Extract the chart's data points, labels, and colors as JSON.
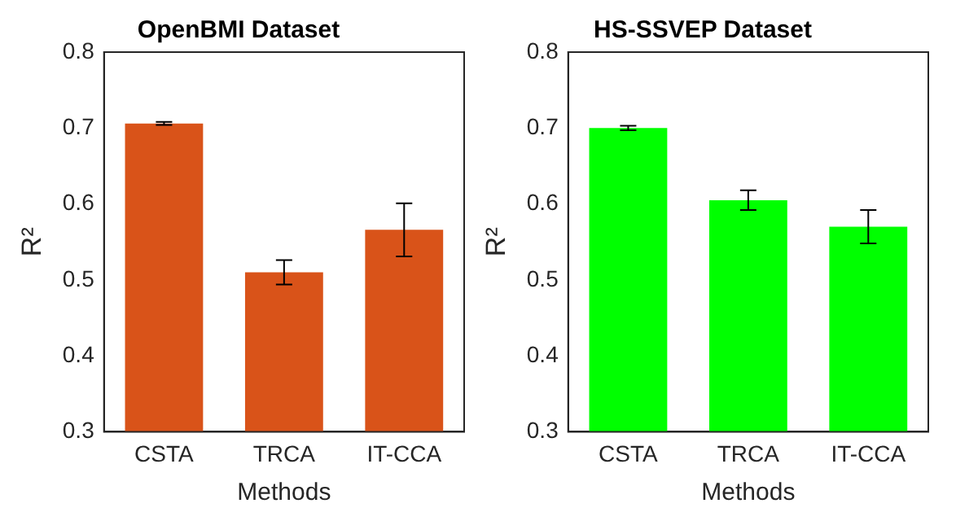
{
  "chart_data": [
    {
      "type": "bar",
      "title": "OpenBMI Dataset",
      "xlabel": "Methods",
      "ylabel": "R²",
      "categories": [
        "CSTA",
        "TRCA",
        "IT-CCA"
      ],
      "values": [
        0.706,
        0.51,
        0.566
      ],
      "errors": [
        0.002,
        0.016,
        0.035
      ],
      "color": "#d95319",
      "ylim": [
        0.3,
        0.8
      ],
      "yticks": [
        0.3,
        0.4,
        0.5,
        0.6,
        0.7,
        0.8
      ],
      "grid": false
    },
    {
      "type": "bar",
      "title": "HS-SSVEP Dataset",
      "xlabel": "Methods",
      "ylabel": "R²",
      "categories": [
        "CSTA",
        "TRCA",
        "IT-CCA"
      ],
      "values": [
        0.7,
        0.605,
        0.57
      ],
      "errors": [
        0.003,
        0.013,
        0.022
      ],
      "color": "#00ff00",
      "ylim": [
        0.3,
        0.8
      ],
      "yticks": [
        0.3,
        0.4,
        0.5,
        0.6,
        0.7,
        0.8
      ],
      "grid": false
    }
  ]
}
